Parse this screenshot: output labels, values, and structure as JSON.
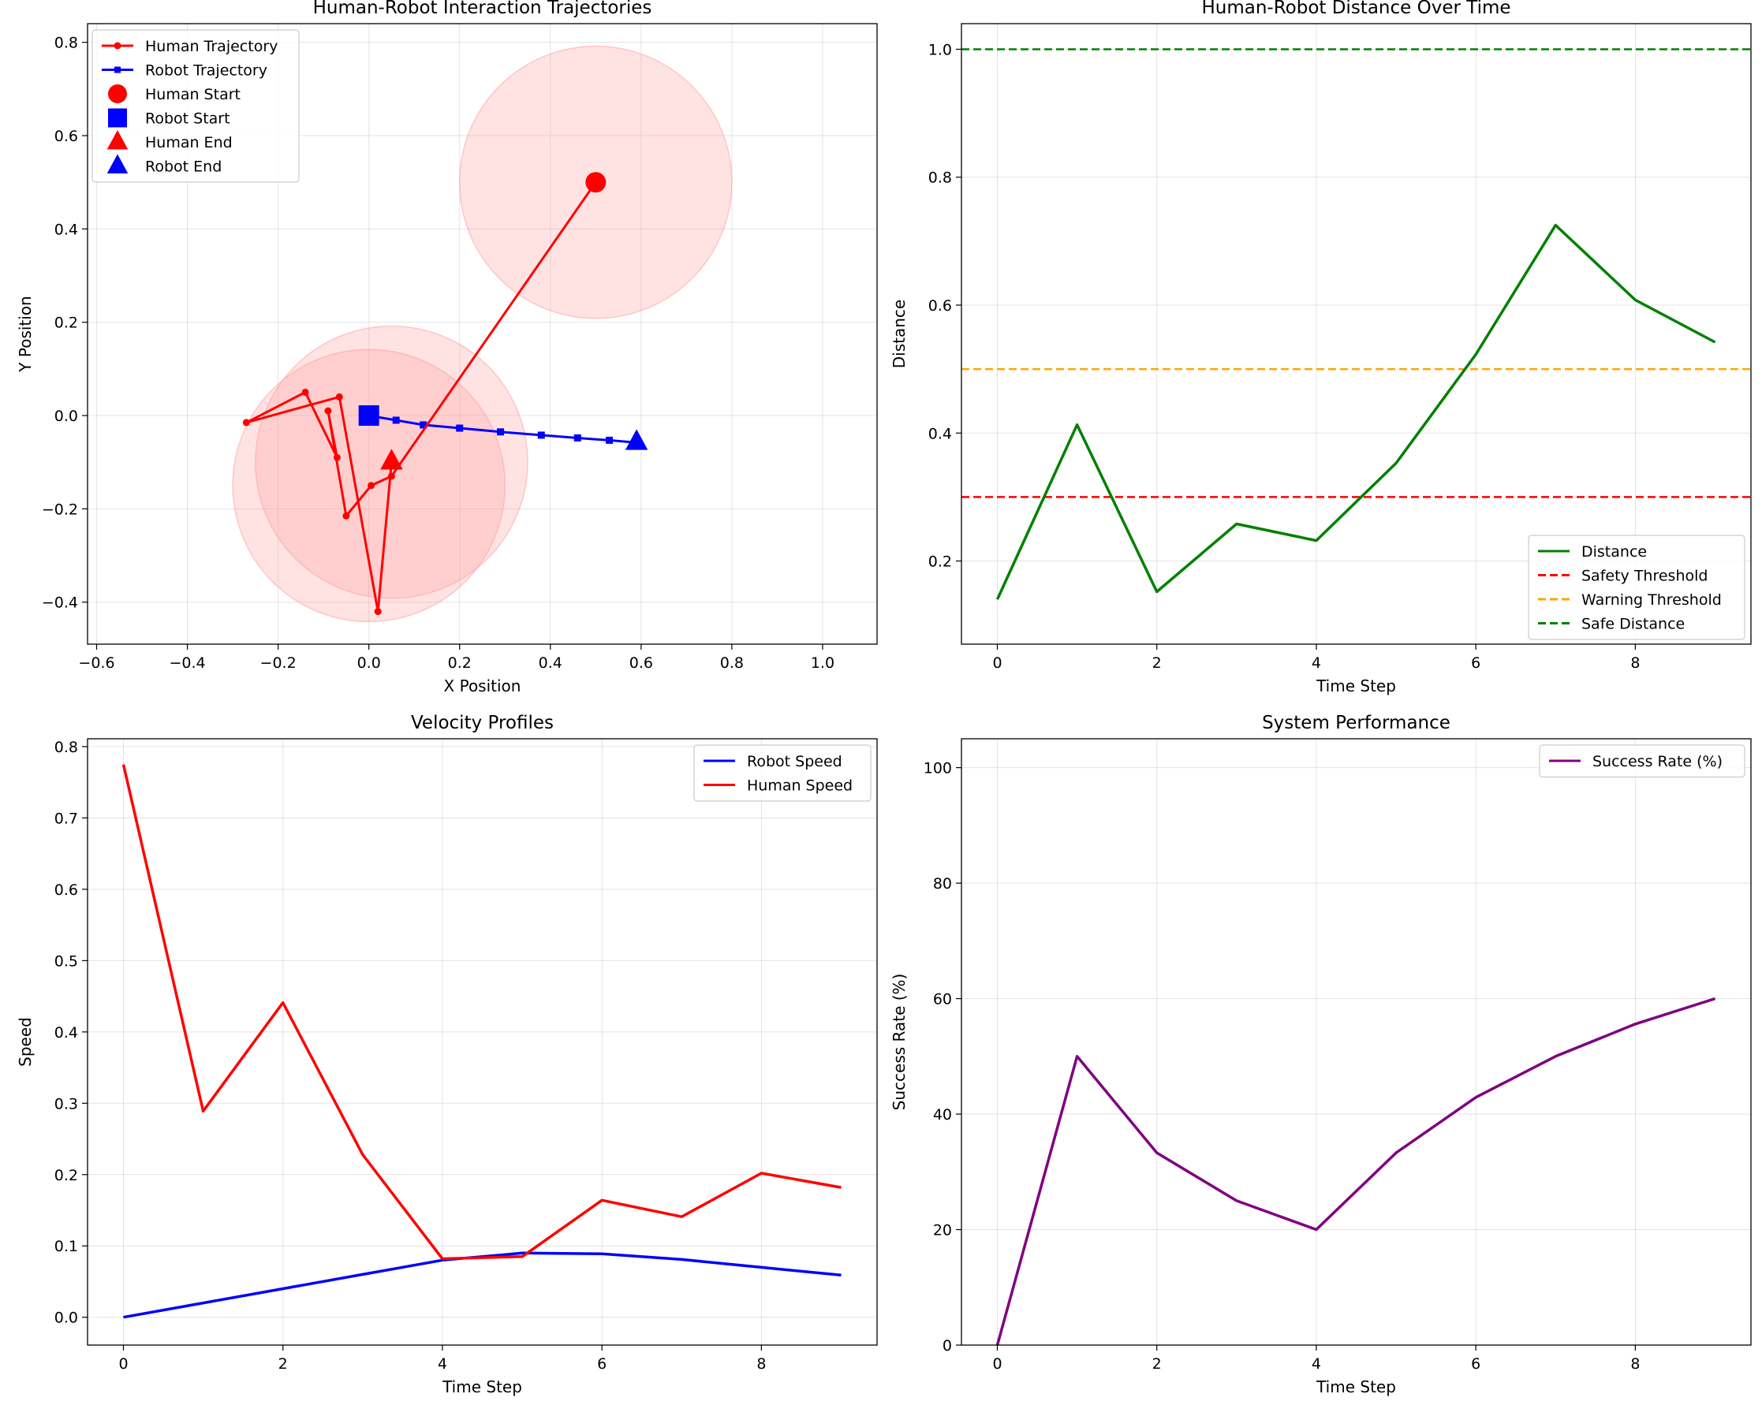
{
  "chart_data": [
    {
      "type": "scatter",
      "title": "Human-Robot Interaction Trajectories",
      "xlabel": "X Position",
      "ylabel": "Y Position",
      "xlim": [
        -0.62,
        1.12
      ],
      "ylim": [
        -0.49,
        0.84
      ],
      "xticks": [
        -0.6,
        -0.4,
        -0.2,
        0.0,
        0.2,
        0.4,
        0.6,
        0.8,
        1.0
      ],
      "yticks": [
        -0.4,
        -0.2,
        0.0,
        0.2,
        0.4,
        0.6,
        0.8
      ],
      "grid": true,
      "legend_position": "top-left",
      "legend": [
        "Human Trajectory",
        "Robot Trajectory",
        "Human Start",
        "Robot Start",
        "Human End",
        "Robot End"
      ],
      "colors": {
        "human": "#ff0000",
        "robot": "#0000ff",
        "zone": "#ff9999"
      },
      "safety_zones": [
        {
          "x": 0.5,
          "y": 0.5,
          "r": 0.3
        },
        {
          "x": 0.05,
          "y": -0.1,
          "r": 0.3
        },
        {
          "x": 0.0,
          "y": -0.15,
          "r": 0.3
        }
      ],
      "series": [
        {
          "name": "Human Trajectory",
          "x": [
            0.5,
            0.05,
            0.005,
            -0.05,
            -0.09,
            -0.07,
            -0.14,
            -0.27,
            -0.065,
            0.02,
            0.05
          ],
          "y": [
            0.5,
            -0.13,
            -0.15,
            -0.215,
            0.01,
            -0.09,
            0.05,
            -0.015,
            0.04,
            -0.42,
            -0.1
          ]
        },
        {
          "name": "Robot Trajectory",
          "x": [
            0.0,
            0.06,
            0.12,
            0.2,
            0.29,
            0.38,
            0.46,
            0.53,
            0.59
          ],
          "y": [
            0.0,
            -0.01,
            -0.02,
            -0.027,
            -0.035,
            -0.042,
            -0.048,
            -0.053,
            -0.058
          ]
        }
      ],
      "markers": {
        "human_start": [
          0.5,
          0.5
        ],
        "robot_start": [
          0.0,
          0.0
        ],
        "human_end": [
          0.05,
          -0.1
        ],
        "robot_end": [
          0.59,
          -0.058
        ]
      }
    },
    {
      "type": "line",
      "title": "Human-Robot Distance Over Time",
      "xlabel": "Time Step",
      "ylabel": "Distance",
      "xlim": [
        -0.45,
        9.45
      ],
      "ylim": [
        0.07,
        1.04
      ],
      "xticks": [
        0,
        2,
        4,
        6,
        8
      ],
      "yticks": [
        0.2,
        0.4,
        0.6,
        0.8,
        1.0
      ],
      "grid": true,
      "legend_position": "lower-right",
      "x": [
        0,
        1,
        2,
        3,
        4,
        5,
        6,
        7,
        8,
        9
      ],
      "series": [
        {
          "name": "Distance",
          "color": "#008000",
          "values": [
            0.14,
            0.413,
            0.152,
            0.258,
            0.232,
            0.353,
            0.523,
            0.725,
            0.608,
            0.542
          ]
        }
      ],
      "hlines": [
        {
          "name": "Safety Threshold",
          "y": 0.3,
          "color": "#ff0000"
        },
        {
          "name": "Warning Threshold",
          "y": 0.5,
          "color": "#ffa500"
        },
        {
          "name": "Safe Distance",
          "y": 1.0,
          "color": "#008000"
        }
      ]
    },
    {
      "type": "line",
      "title": "Velocity Profiles",
      "xlabel": "Time Step",
      "ylabel": "Speed",
      "xlim": [
        -0.45,
        9.45
      ],
      "ylim": [
        -0.039,
        0.811
      ],
      "xticks": [
        0,
        2,
        4,
        6,
        8
      ],
      "yticks": [
        0.0,
        0.1,
        0.2,
        0.3,
        0.4,
        0.5,
        0.6,
        0.7,
        0.8
      ],
      "grid": true,
      "legend_position": "top-right",
      "x": [
        0,
        1,
        2,
        3,
        4,
        5,
        6,
        7,
        8,
        9
      ],
      "series": [
        {
          "name": "Robot Speed",
          "color": "#0000ff",
          "values": [
            0.0,
            0.02,
            0.04,
            0.06,
            0.08,
            0.09,
            0.089,
            0.081,
            0.07,
            0.059
          ]
        },
        {
          "name": "Human Speed",
          "color": "#ff0000",
          "values": [
            0.775,
            0.289,
            0.441,
            0.228,
            0.082,
            0.085,
            0.164,
            0.141,
            0.202,
            0.182
          ]
        }
      ]
    },
    {
      "type": "line",
      "title": "System Performance",
      "xlabel": "Time Step",
      "ylabel": "Success Rate (%)",
      "xlim": [
        -0.45,
        9.45
      ],
      "ylim": [
        0,
        105
      ],
      "xticks": [
        0,
        2,
        4,
        6,
        8
      ],
      "yticks": [
        0,
        20,
        40,
        60,
        80,
        100
      ],
      "grid": true,
      "legend_position": "top-right",
      "x": [
        0,
        1,
        2,
        3,
        4,
        5,
        6,
        7,
        8,
        9
      ],
      "series": [
        {
          "name": "Success Rate (%)",
          "color": "#800080",
          "values": [
            0,
            50,
            33.3,
            25,
            20,
            33.3,
            42.9,
            50,
            55.6,
            60
          ]
        }
      ]
    }
  ]
}
